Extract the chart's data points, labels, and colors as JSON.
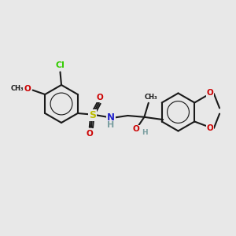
{
  "background_color": "#e8e8e8",
  "bond_color": "#1a1a1a",
  "atom_colors": {
    "Cl": "#33cc00",
    "O": "#cc0000",
    "S": "#bbbb00",
    "N": "#2222cc",
    "H": "#7a9ea0",
    "C": "#1a1a1a"
  },
  "line_width": 1.5,
  "font_size_atom": 7.5,
  "figsize": [
    3.0,
    3.0
  ],
  "dpi": 100,
  "xlim": [
    0,
    10
  ],
  "ylim": [
    0,
    10
  ]
}
